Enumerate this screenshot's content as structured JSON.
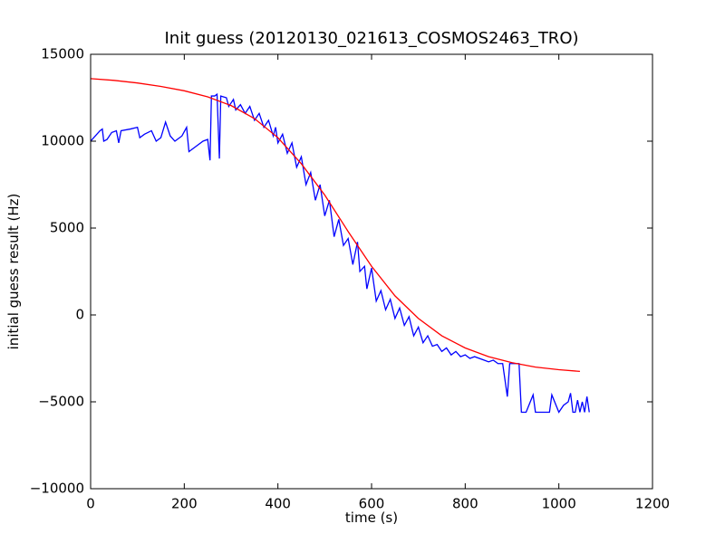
{
  "chart_data": {
    "type": "line",
    "title": "Init guess (20120130_021613_COSMOS2463_TRO)",
    "x_label": "time (s)",
    "y_label": "initial guess result (Hz)",
    "xlim": [
      0,
      1200
    ],
    "xticks": [
      0,
      200,
      400,
      600,
      800,
      1000,
      1200
    ],
    "ylim": [
      -10000,
      15000
    ],
    "yticks": [
      {
        "value": -10000,
        "label": "−10000"
      },
      {
        "value": -5000,
        "label": "−5000"
      },
      0,
      5000,
      10000,
      15000
    ],
    "grid": false,
    "series": [
      {
        "color": "#0000ff",
        "x": [
          0,
          10,
          20,
          25,
          28,
          35,
          45,
          55,
          60,
          65,
          85,
          100,
          105,
          115,
          130,
          140,
          150,
          160,
          170,
          180,
          195,
          205,
          210,
          225,
          240,
          250,
          255,
          258,
          265,
          270,
          275,
          278,
          290,
          295,
          305,
          310,
          320,
          330,
          340,
          350,
          360,
          370,
          380,
          390,
          395,
          400,
          410,
          420,
          430,
          440,
          450,
          460,
          470,
          480,
          490,
          500,
          510,
          520,
          530,
          540,
          550,
          560,
          570,
          575,
          585,
          590,
          600,
          610,
          620,
          630,
          640,
          650,
          660,
          670,
          680,
          690,
          700,
          710,
          720,
          730,
          740,
          750,
          760,
          770,
          780,
          790,
          800,
          810,
          820,
          840,
          850,
          860,
          870,
          880,
          890,
          895,
          910,
          915,
          920,
          930,
          945,
          950,
          980,
          985,
          1000,
          1010,
          1020,
          1025,
          1030,
          1035,
          1040,
          1045,
          1050,
          1055,
          1060,
          1065
        ],
        "values": [
          10000,
          10300,
          10600,
          10700,
          10000,
          10100,
          10500,
          10600,
          9900,
          10600,
          10700,
          10800,
          10200,
          10400,
          10600,
          10000,
          10200,
          11100,
          10300,
          10000,
          10300,
          10800,
          9400,
          9700,
          10000,
          10100,
          8900,
          12600,
          12600,
          12700,
          9000,
          12600,
          12500,
          12000,
          12400,
          11800,
          12100,
          11600,
          12000,
          11200,
          11600,
          10800,
          11200,
          10300,
          10800,
          9900,
          10400,
          9300,
          9900,
          8500,
          9100,
          7500,
          8200,
          6600,
          7500,
          5700,
          6600,
          4500,
          5500,
          4000,
          4400,
          2900,
          4200,
          2500,
          2800,
          1500,
          2700,
          800,
          1400,
          300,
          900,
          -200,
          400,
          -600,
          -100,
          -1200,
          -700,
          -1600,
          -1200,
          -1800,
          -1700,
          -2100,
          -1900,
          -2300,
          -2100,
          -2400,
          -2300,
          -2500,
          -2400,
          -2600,
          -2700,
          -2600,
          -2800,
          -2800,
          -4700,
          -2800,
          -2800,
          -2800,
          -5600,
          -5600,
          -4600,
          -5600,
          -5600,
          -4600,
          -5600,
          -5200,
          -5000,
          -4500,
          -5600,
          -5600,
          -4900,
          -5600,
          -5000,
          -5600,
          -4700,
          -5600
        ]
      },
      {
        "color": "#ff0000",
        "x": [
          0,
          50,
          100,
          150,
          200,
          250,
          300,
          350,
          400,
          450,
          500,
          550,
          600,
          650,
          700,
          750,
          800,
          850,
          900,
          950,
          1000,
          1045
        ],
        "values": [
          13600,
          13500,
          13350,
          13150,
          12900,
          12550,
          12050,
          11300,
          10200,
          8700,
          6900,
          4800,
          2800,
          1100,
          -200,
          -1200,
          -1900,
          -2400,
          -2750,
          -3000,
          -3150,
          -3250
        ]
      }
    ]
  }
}
